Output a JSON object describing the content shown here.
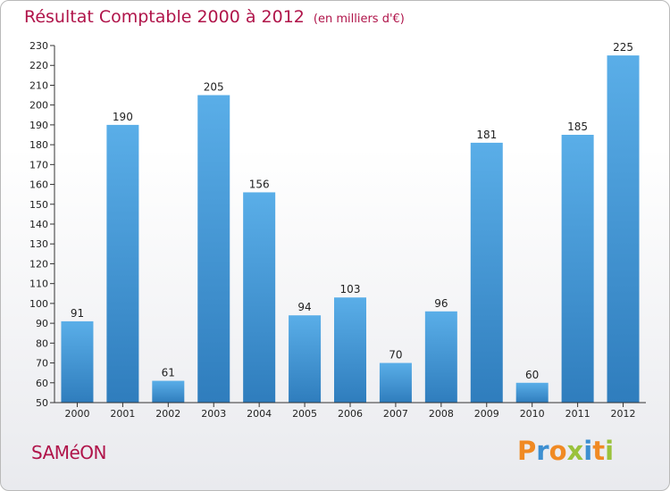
{
  "header": {
    "title": "Résultat Comptable 2000 à 2012",
    "unit": "(en milliers d'€)"
  },
  "footer": {
    "commune": "SAMéON",
    "logo": "Proxiti"
  },
  "colors": {
    "title": "#b0144a",
    "bar_top": "#5aaee8",
    "bar_bottom": "#2f7dbd",
    "logo_letters": [
      "#f08a24",
      "#3d8fd1",
      "#f08a24",
      "#9ac23c",
      "#3d8fd1",
      "#f08a24",
      "#9ac23c"
    ]
  },
  "chart_data": {
    "type": "bar",
    "title": "Résultat Comptable 2000 à 2012",
    "ylabel": "en milliers d'€",
    "xlabel": "",
    "categories": [
      "2000",
      "2001",
      "2002",
      "2003",
      "2004",
      "2005",
      "2006",
      "2007",
      "2008",
      "2009",
      "2010",
      "2011",
      "2012"
    ],
    "values": [
      91,
      190,
      61,
      205,
      156,
      94,
      103,
      70,
      96,
      181,
      60,
      185,
      225
    ],
    "ylim": [
      50,
      230
    ],
    "yticks": [
      50,
      60,
      70,
      80,
      90,
      100,
      110,
      120,
      130,
      140,
      150,
      160,
      170,
      180,
      190,
      200,
      210,
      220,
      230
    ],
    "grid": false,
    "data_labels": true
  }
}
